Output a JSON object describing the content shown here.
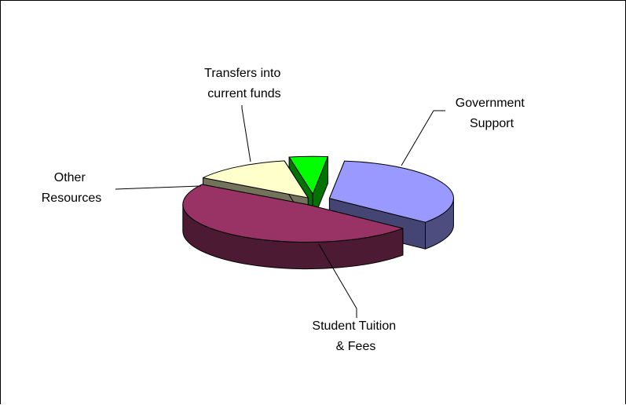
{
  "chart_data": {
    "type": "pie",
    "style": "3d-exploded",
    "slices": [
      {
        "label_lines": [
          "Government",
          "Support"
        ],
        "value": 34,
        "color": "#9999ff"
      },
      {
        "label_lines": [
          "Student Tuition",
          "& Fees"
        ],
        "value": 48,
        "color": "#993366"
      },
      {
        "label_lines": [
          "Other",
          "Resources"
        ],
        "value": 13,
        "color": "#ffffcc"
      },
      {
        "label_lines": [
          "Transfers into",
          "current funds"
        ],
        "value": 5,
        "color": "#00ff00"
      }
    ]
  }
}
